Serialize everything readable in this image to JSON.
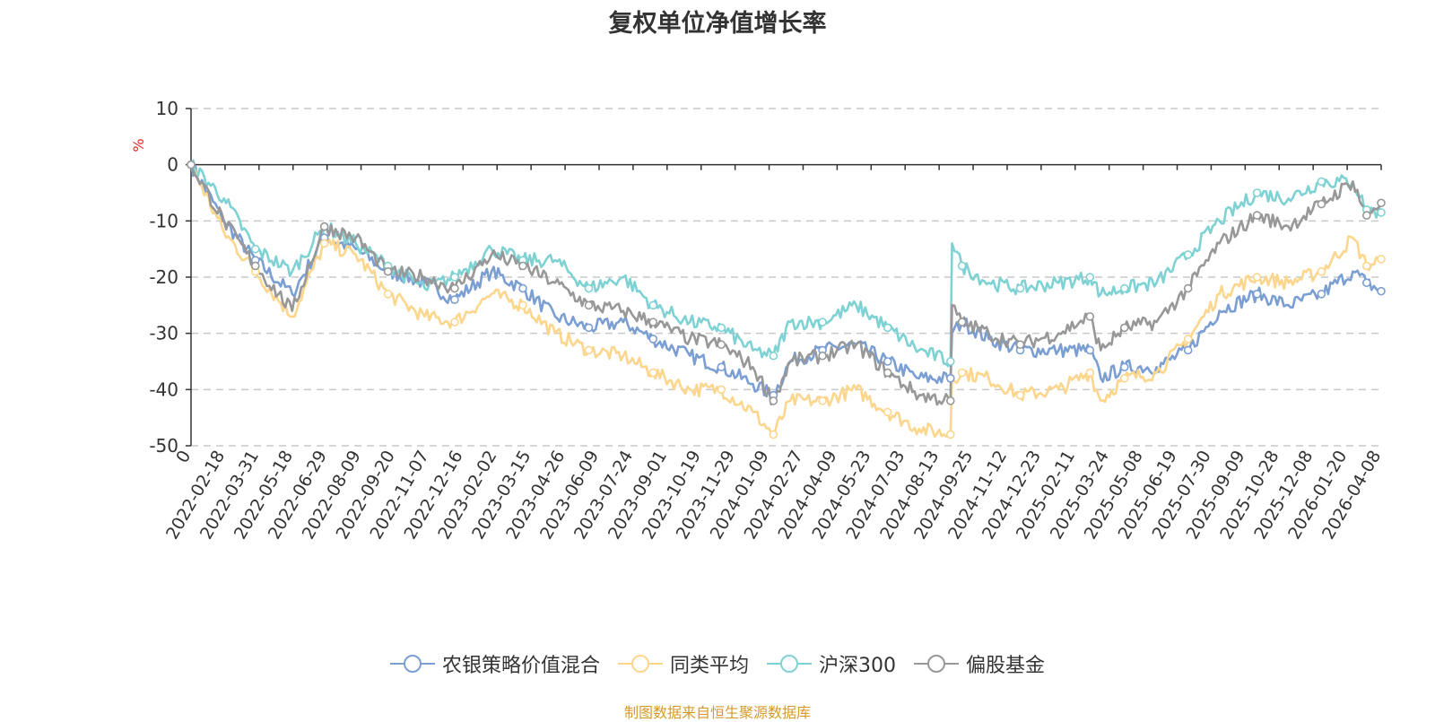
{
  "title": "复权单位净值增长率",
  "source": "制图数据来自恒生聚源数据库",
  "chart_data": {
    "type": "line",
    "title": "复权单位净值增长率",
    "ylabel": "%",
    "ylim": [
      -50,
      10
    ],
    "yticks": [
      10,
      0,
      -10,
      -20,
      -30,
      -40,
      -50
    ],
    "x_start": "2022-01-06",
    "x_end": "2026-04-08",
    "x_ticks": [
      "0",
      "2022-02-18",
      "2022-03-31",
      "2022-05-18",
      "2022-06-29",
      "2022-08-09",
      "2022-09-20",
      "2022-11-07",
      "2022-12-16",
      "2023-02-02",
      "2023-03-15",
      "2023-04-26",
      "2023-06-09",
      "2023-07-24",
      "2023-09-01",
      "2023-10-19",
      "2023-11-29",
      "2024-01-09",
      "2024-02-27",
      "2024-04-09",
      "2024-05-23",
      "2024-07-03",
      "2024-08-13",
      "2024-09-25",
      "2024-11-12",
      "2024-12-23",
      "2025-02-11",
      "2025-03-24",
      "2025-05-08",
      "2025-06-19",
      "2025-07-30",
      "2025-09-09",
      "2025-10-28",
      "2025-12-08",
      "2026-01-20",
      "2026-04-08"
    ],
    "x": [
      "2022-01-06",
      "2022-02-18",
      "2022-03-31",
      "2022-05-18",
      "2022-06-29",
      "2022-08-09",
      "2022-09-20",
      "2022-11-07",
      "2022-12-16",
      "2023-02-02",
      "2023-03-15",
      "2023-04-26",
      "2023-06-09",
      "2023-07-24",
      "2023-09-01",
      "2023-10-19",
      "2023-11-29",
      "2024-01-09",
      "2024-02-05",
      "2024-02-27",
      "2024-04-09",
      "2024-05-23",
      "2024-07-03",
      "2024-08-13",
      "2024-09-23",
      "2024-09-25",
      "2024-10-08",
      "2024-11-12",
      "2024-12-23",
      "2025-02-11",
      "2025-03-24",
      "2025-04-07",
      "2025-05-08",
      "2025-06-19",
      "2025-07-30",
      "2025-09-09",
      "2025-10-28",
      "2025-12-08",
      "2026-01-20",
      "2026-03-02",
      "2026-03-20",
      "2026-04-08"
    ],
    "series": [
      {
        "name": "农银策略价值混合",
        "color": "#7b9ed3",
        "values": [
          0,
          -10,
          -17,
          -23,
          -13,
          -15,
          -19,
          -21,
          -24,
          -19,
          -22,
          -27,
          -29,
          -28,
          -31,
          -34,
          -36,
          -39,
          -41,
          -35,
          -33,
          -32,
          -35,
          -38,
          -38,
          -30,
          -28,
          -31,
          -33,
          -33,
          -33,
          -38,
          -36,
          -36,
          -33,
          -26,
          -23,
          -25,
          -23,
          -19,
          -21,
          -22.5
        ]
      },
      {
        "name": "同类平均",
        "color": "#fcd68c",
        "values": [
          0,
          -12,
          -19,
          -27,
          -14,
          -16,
          -23,
          -27,
          -28,
          -23,
          -25,
          -30,
          -33,
          -34,
          -37,
          -40,
          -40,
          -44,
          -48,
          -42,
          -42,
          -40,
          -44,
          -47,
          -48,
          -38,
          -37,
          -38,
          -41,
          -40,
          -37,
          -42,
          -38,
          -37,
          -31,
          -23,
          -20,
          -21,
          -19,
          -13,
          -18,
          -16.8
        ]
      },
      {
        "name": "沪深300",
        "color": "#7fd2d3",
        "values": [
          0,
          -6,
          -15,
          -19,
          -11,
          -14,
          -18,
          -22,
          -20,
          -15,
          -17,
          -17,
          -22,
          -20,
          -25,
          -28,
          -29,
          -33,
          -34,
          -28,
          -28,
          -25,
          -29,
          -33,
          -35,
          -14,
          -18,
          -21,
          -22,
          -21,
          -20,
          -23,
          -22,
          -21,
          -16,
          -10,
          -5,
          -6,
          -3,
          -3,
          -8,
          -8.5
        ]
      },
      {
        "name": "偏股基金",
        "color": "#989898",
        "values": [
          0,
          -10,
          -18,
          -26,
          -11,
          -13,
          -19,
          -20,
          -22,
          -16,
          -18,
          -21,
          -25,
          -26,
          -28,
          -31,
          -32,
          -36,
          -42,
          -35,
          -34,
          -32,
          -37,
          -41,
          -42,
          -25,
          -28,
          -30,
          -32,
          -30,
          -27,
          -33,
          -29,
          -28,
          -22,
          -14,
          -9,
          -11,
          -7,
          -3,
          -9,
          -6.8
        ]
      }
    ]
  }
}
